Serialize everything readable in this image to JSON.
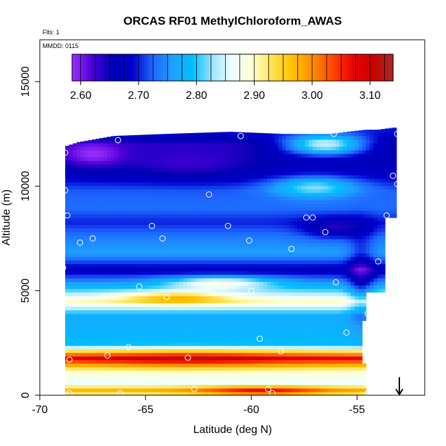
{
  "chart_data": {
    "type": "heatmap",
    "title": "ORCAS RF01 MethylChloroform_AWAS",
    "flights_label": "Flts: 1",
    "date_label": "MMDD: 0115",
    "xlabel": "Latitude (deg N)",
    "ylabel": "Altitude (m)",
    "xlim": [
      -70,
      -51.8
    ],
    "ylim": [
      0,
      17000
    ],
    "x_ticks": [
      -70,
      -65,
      -60,
      -55
    ],
    "x_tick_labels": [
      "-70",
      "-65",
      "-60",
      "-55"
    ],
    "y_ticks": [
      0,
      5000,
      10000,
      15000
    ],
    "y_tick_labels": [
      "0",
      "5000",
      "10000",
      "15000"
    ],
    "colorbar": {
      "min": 2.585,
      "max": 3.14,
      "ticks": [
        2.6,
        2.7,
        2.8,
        2.9,
        3.0,
        3.1
      ],
      "tick_labels": [
        "2.60",
        "2.70",
        "2.80",
        "2.90",
        "3.00",
        "3.10"
      ],
      "colors": [
        "#9b30ff",
        "#4c00d9",
        "#0000b3",
        "#0000cd",
        "#1e64ff",
        "#1ea0ff",
        "#00bfff",
        "#a0e4ff",
        "#f0ffff",
        "#ffffd0",
        "#ffe14d",
        "#ffc000",
        "#ff8c00",
        "#ff4500",
        "#ee0000",
        "#cd0000",
        "#a52a2a"
      ]
    },
    "domain": {
      "x_top_left": [
        -68.8,
        12000
      ],
      "boundary_lat": [
        -68.8,
        -68.2,
        -66.5,
        -64.0,
        -61.0,
        -58.5,
        -56.3,
        -54.6,
        -54.0,
        -53.3,
        -53.1
      ],
      "boundary_top": [
        11900,
        12100,
        12400,
        12500,
        12600,
        12500,
        12500,
        12700,
        12700,
        12800,
        12800
      ]
    },
    "layers": [
      {
        "alt": 0,
        "value": 2.87
      },
      {
        "alt": 200,
        "value": 2.99
      },
      {
        "alt": 600,
        "value": 2.86
      },
      {
        "alt": 1200,
        "value": 2.9
      },
      {
        "alt": 1800,
        "value": 3.08
      },
      {
        "alt": 2400,
        "value": 2.79
      },
      {
        "alt": 3000,
        "value": 2.78
      },
      {
        "alt": 3800,
        "value": 2.77
      },
      {
        "alt": 4500,
        "value": 2.9
      },
      {
        "alt": 5200,
        "value": 2.78
      },
      {
        "alt": 6000,
        "value": 2.67
      },
      {
        "alt": 6800,
        "value": 2.76
      },
      {
        "alt": 7500,
        "value": 2.74
      },
      {
        "alt": 8300,
        "value": 2.7
      },
      {
        "alt": 9000,
        "value": 2.73
      },
      {
        "alt": 9800,
        "value": 2.72
      },
      {
        "alt": 10500,
        "value": 2.68
      },
      {
        "alt": 11200,
        "value": 2.66
      },
      {
        "alt": 12000,
        "value": 2.64
      },
      {
        "alt": 12800,
        "value": 2.7
      }
    ],
    "hotspots": [
      {
        "lat": -63.0,
        "alt": 1800,
        "value": 3.12,
        "wlat": 4.5,
        "walt": 500
      },
      {
        "lat": -59.5,
        "alt": 200,
        "value": 3.09,
        "wlat": 3.0,
        "walt": 250
      },
      {
        "lat": -63.5,
        "alt": 4700,
        "value": 2.97,
        "wlat": 2.5,
        "walt": 300
      },
      {
        "lat": -61.5,
        "alt": 5400,
        "value": 2.88,
        "wlat": 2.5,
        "walt": 300
      },
      {
        "lat": -67.5,
        "alt": 11500,
        "value": 2.59,
        "wlat": 1.5,
        "walt": 600
      },
      {
        "lat": -63.0,
        "alt": 11000,
        "value": 2.63,
        "wlat": 3.0,
        "walt": 700
      },
      {
        "lat": -56.0,
        "alt": 8000,
        "value": 2.64,
        "wlat": 1.5,
        "walt": 500
      },
      {
        "lat": -56.5,
        "alt": 12000,
        "value": 2.84,
        "wlat": 2.0,
        "walt": 500
      },
      {
        "lat": -57.0,
        "alt": 10000,
        "value": 2.82,
        "wlat": 2.0,
        "walt": 500
      },
      {
        "lat": -54.8,
        "alt": 5500,
        "value": 2.66,
        "wlat": 0.6,
        "walt": 2000
      }
    ],
    "samples": [
      {
        "lat": -68.8,
        "alt": 11600
      },
      {
        "lat": -66.3,
        "alt": 12200
      },
      {
        "lat": -60.5,
        "alt": 12400
      },
      {
        "lat": -56.1,
        "alt": 12500
      },
      {
        "lat": -53.1,
        "alt": 12500
      },
      {
        "lat": -53.3,
        "alt": 10500
      },
      {
        "lat": -53.1,
        "alt": 10100
      },
      {
        "lat": -68.8,
        "alt": 9800
      },
      {
        "lat": -62.0,
        "alt": 9600
      },
      {
        "lat": -68.7,
        "alt": 8600
      },
      {
        "lat": -57.4,
        "alt": 8500
      },
      {
        "lat": -57.1,
        "alt": 8500
      },
      {
        "lat": -53.6,
        "alt": 8600
      },
      {
        "lat": -64.7,
        "alt": 8100
      },
      {
        "lat": -61.1,
        "alt": 8100
      },
      {
        "lat": -56.5,
        "alt": 7800
      },
      {
        "lat": -64.2,
        "alt": 7500
      },
      {
        "lat": -67.5,
        "alt": 7500
      },
      {
        "lat": -68.1,
        "alt": 7300
      },
      {
        "lat": -60.1,
        "alt": 7400
      },
      {
        "lat": -58.1,
        "alt": 7000
      },
      {
        "lat": -68.9,
        "alt": 6100
      },
      {
        "lat": -54.0,
        "alt": 6400
      },
      {
        "lat": -65.3,
        "alt": 5200
      },
      {
        "lat": -61.7,
        "alt": 5300
      },
      {
        "lat": -56.0,
        "alt": 5400
      },
      {
        "lat": -60.0,
        "alt": 5000
      },
      {
        "lat": -67.0,
        "alt": 4700
      },
      {
        "lat": -64.0,
        "alt": 4700
      },
      {
        "lat": -58.6,
        "alt": 4600
      },
      {
        "lat": -68.6,
        "alt": 4500
      },
      {
        "lat": -54.5,
        "alt": 3900
      },
      {
        "lat": -55.5,
        "alt": 3000
      },
      {
        "lat": -59.6,
        "alt": 2700
      },
      {
        "lat": -65.8,
        "alt": 2300
      },
      {
        "lat": -58.6,
        "alt": 2100
      },
      {
        "lat": -66.8,
        "alt": 1900
      },
      {
        "lat": -63.0,
        "alt": 1800
      },
      {
        "lat": -68.6,
        "alt": 1700
      },
      {
        "lat": -54.6,
        "alt": 600
      },
      {
        "lat": -62.7,
        "alt": 300
      },
      {
        "lat": -59.2,
        "alt": 300
      },
      {
        "lat": -68.6,
        "alt": 100
      },
      {
        "lat": -66.2,
        "alt": 100
      },
      {
        "lat": -59.0,
        "alt": 100
      },
      {
        "lat": -54.5,
        "alt": 100
      }
    ],
    "arrow": {
      "lat": -53.0,
      "alt_top": 700,
      "alt_bottom": 0
    }
  }
}
